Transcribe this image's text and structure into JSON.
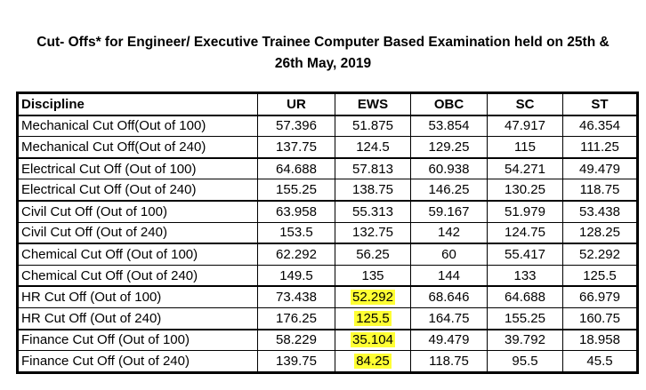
{
  "title": {
    "line1": "Cut- Offs* for Engineer/ Executive Trainee Computer Based Examination held on 25th &",
    "line2": "26th May, 2019"
  },
  "table": {
    "headers": [
      "Discipline",
      "UR",
      "EWS",
      "OBC",
      "SC",
      "ST"
    ],
    "rows": [
      [
        "Mechanical Cut Off(Out of 100)",
        "57.396",
        "51.875",
        "53.854",
        "47.917",
        "46.354"
      ],
      [
        "Mechanical Cut Off(Out of 240)",
        "137.75",
        "124.5",
        "129.25",
        "115",
        "111.25"
      ],
      [
        "Electrical Cut Off (Out of 100)",
        "64.688",
        "57.813",
        "60.938",
        "54.271",
        "49.479"
      ],
      [
        "Electrical Cut Off (Out of 240)",
        "155.25",
        "138.75",
        "146.25",
        "130.25",
        "118.75"
      ],
      [
        "Civil Cut Off (Out of 100)",
        "63.958",
        "55.313",
        "59.167",
        "51.979",
        "53.438"
      ],
      [
        "Civil Cut Off (Out of 240)",
        "153.5",
        "132.75",
        "142",
        "124.75",
        "128.25"
      ],
      [
        "Chemical Cut Off (Out of 100)",
        "62.292",
        "56.25",
        "60",
        "55.417",
        "52.292"
      ],
      [
        "Chemical Cut Off (Out of 240)",
        "149.5",
        "135",
        "144",
        "133",
        "125.5"
      ],
      [
        "HR Cut Off (Out of 100)",
        "73.438",
        "52.292",
        "68.646",
        "64.688",
        "66.979"
      ],
      [
        "HR Cut Off (Out of 240)",
        "176.25",
        "125.5",
        "164.75",
        "155.25",
        "160.75"
      ],
      [
        "Finance Cut Off (Out of 100)",
        "58.229",
        "35.104",
        "49.479",
        "39.792",
        "18.958"
      ],
      [
        "Finance Cut Off (Out of 240)",
        "139.75",
        "84.25",
        "118.75",
        "95.5",
        "45.5"
      ]
    ]
  },
  "highlight_color": "#ffff33"
}
